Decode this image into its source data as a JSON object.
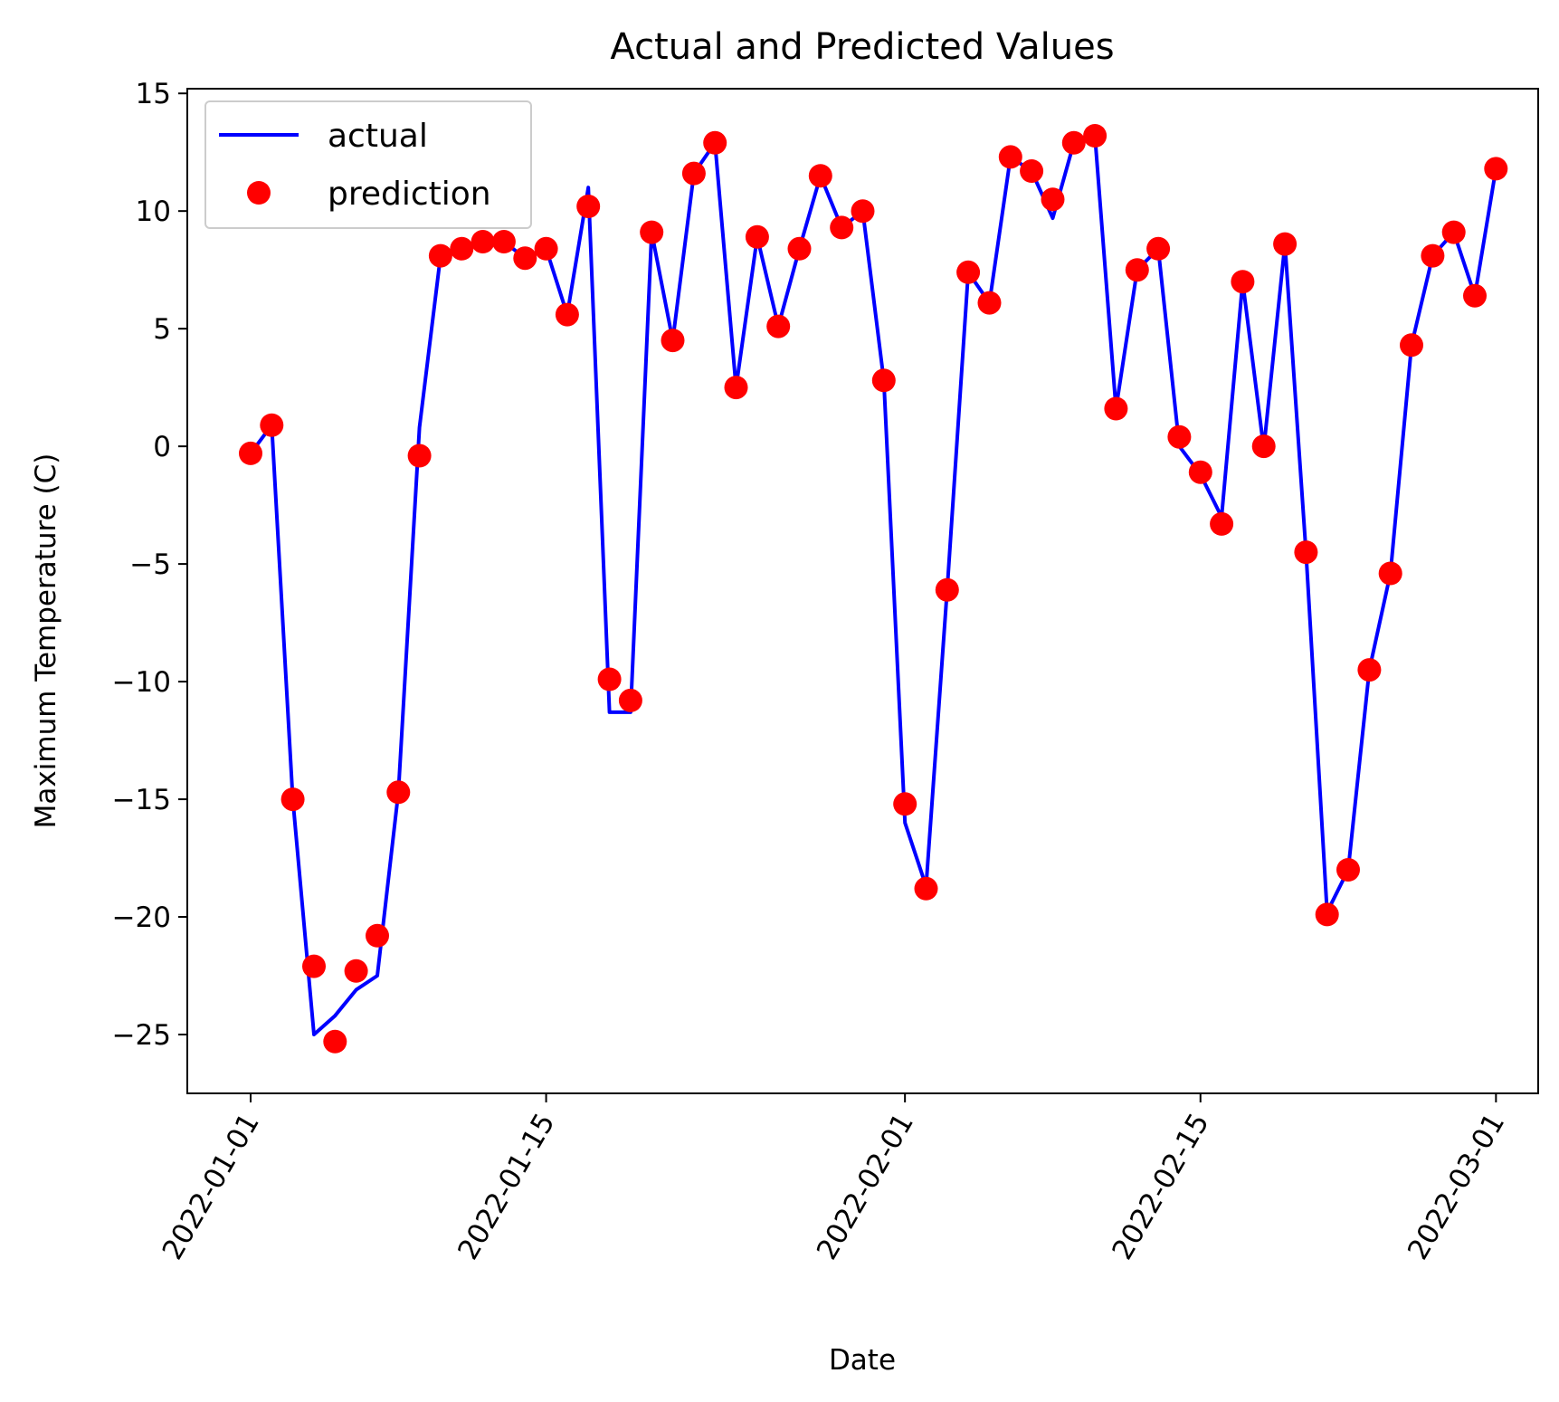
{
  "chart_data": {
    "type": "line",
    "title": "Actual and Predicted Values",
    "xlabel": "Date",
    "ylabel": "Maximum Temperature (C)",
    "xlim": [
      "2021-12-29",
      "2022-03-03"
    ],
    "ylim": [
      -27.5,
      15.2
    ],
    "x_ticks": [
      "2022-01-01",
      "2022-01-15",
      "2022-02-01",
      "2022-02-15",
      "2022-03-01"
    ],
    "y_ticks": [
      15,
      10,
      5,
      0,
      -5,
      -10,
      -15,
      -20,
      -25
    ],
    "y_tick_labels": [
      "15",
      "10",
      "5",
      "0",
      "−5",
      "−10",
      "−15",
      "−20",
      "−25"
    ],
    "legend": {
      "position": "top-left"
    },
    "colors": {
      "actual": "#0000ff",
      "prediction": "#ff0000"
    },
    "series": [
      {
        "name": "actual",
        "style": "line",
        "x": [
          "2022-01-01",
          "2022-01-02",
          "2022-01-03",
          "2022-01-04",
          "2022-01-05",
          "2022-01-06",
          "2022-01-07",
          "2022-01-08",
          "2022-01-09",
          "2022-01-10",
          "2022-01-11",
          "2022-01-12",
          "2022-01-13",
          "2022-01-14",
          "2022-01-15",
          "2022-01-16",
          "2022-01-17",
          "2022-01-18",
          "2022-01-19",
          "2022-01-20",
          "2022-01-21",
          "2022-01-22",
          "2022-01-23",
          "2022-01-24",
          "2022-01-25",
          "2022-01-26",
          "2022-01-27",
          "2022-01-28",
          "2022-01-29",
          "2022-01-30",
          "2022-01-31",
          "2022-02-01",
          "2022-02-02",
          "2022-02-03",
          "2022-02-04",
          "2022-02-05",
          "2022-02-06",
          "2022-02-07",
          "2022-02-08",
          "2022-02-09",
          "2022-02-10",
          "2022-02-11",
          "2022-02-12",
          "2022-02-13",
          "2022-02-14",
          "2022-02-15",
          "2022-02-16",
          "2022-02-17",
          "2022-02-18",
          "2022-02-19",
          "2022-02-20",
          "2022-02-21",
          "2022-02-22",
          "2022-02-23",
          "2022-02-24",
          "2022-02-25",
          "2022-02-26",
          "2022-02-27",
          "2022-02-28",
          "2022-03-01"
        ],
        "values": [
          -0.3,
          0.9,
          -15.0,
          -25.0,
          -24.2,
          -23.1,
          -22.5,
          -14.7,
          0.8,
          8.1,
          8.4,
          8.7,
          8.7,
          8.0,
          8.4,
          5.6,
          11.0,
          -11.3,
          -11.3,
          9.1,
          4.5,
          11.6,
          12.9,
          2.5,
          8.9,
          5.1,
          8.4,
          11.5,
          9.3,
          10.0,
          2.8,
          -16.0,
          -18.7,
          -6.1,
          7.4,
          6.1,
          12.3,
          11.7,
          9.7,
          12.9,
          13.2,
          1.6,
          7.5,
          8.4,
          0.0,
          -1.2,
          -3.0,
          7.0,
          -0.1,
          8.6,
          -4.5,
          -19.8,
          -18.0,
          -9.5,
          -5.4,
          4.3,
          8.1,
          9.1,
          6.4,
          11.8
        ]
      },
      {
        "name": "prediction",
        "style": "markers",
        "x": [
          "2022-01-01",
          "2022-01-02",
          "2022-01-03",
          "2022-01-04",
          "2022-01-05",
          "2022-01-06",
          "2022-01-07",
          "2022-01-08",
          "2022-01-09",
          "2022-01-10",
          "2022-01-11",
          "2022-01-12",
          "2022-01-13",
          "2022-01-14",
          "2022-01-15",
          "2022-01-16",
          "2022-01-17",
          "2022-01-18",
          "2022-01-19",
          "2022-01-20",
          "2022-01-21",
          "2022-01-22",
          "2022-01-23",
          "2022-01-24",
          "2022-01-25",
          "2022-01-26",
          "2022-01-27",
          "2022-01-28",
          "2022-01-29",
          "2022-01-30",
          "2022-01-31",
          "2022-02-01",
          "2022-02-02",
          "2022-02-03",
          "2022-02-04",
          "2022-02-05",
          "2022-02-06",
          "2022-02-07",
          "2022-02-08",
          "2022-02-09",
          "2022-02-10",
          "2022-02-11",
          "2022-02-12",
          "2022-02-13",
          "2022-02-14",
          "2022-02-15",
          "2022-02-16",
          "2022-02-17",
          "2022-02-18",
          "2022-02-19",
          "2022-02-20",
          "2022-02-21",
          "2022-02-22",
          "2022-02-23",
          "2022-02-24",
          "2022-02-25",
          "2022-02-26",
          "2022-02-27",
          "2022-02-28",
          "2022-03-01"
        ],
        "values": [
          -0.3,
          0.9,
          -15.0,
          -22.1,
          -25.3,
          -22.3,
          -20.8,
          -14.7,
          -0.4,
          8.1,
          8.4,
          8.7,
          8.7,
          8.0,
          8.4,
          5.6,
          10.2,
          -9.9,
          -10.8,
          9.1,
          4.5,
          11.6,
          12.9,
          2.5,
          8.9,
          5.1,
          8.4,
          11.5,
          9.3,
          10.0,
          2.8,
          -15.2,
          -18.8,
          -6.1,
          7.4,
          6.1,
          12.3,
          11.7,
          10.5,
          12.9,
          13.2,
          1.6,
          7.5,
          8.4,
          0.4,
          -1.1,
          -3.3,
          7.0,
          0.0,
          8.6,
          -4.5,
          -19.9,
          -18.0,
          -9.5,
          -5.4,
          4.3,
          8.1,
          9.1,
          6.4,
          11.8
        ]
      }
    ]
  }
}
